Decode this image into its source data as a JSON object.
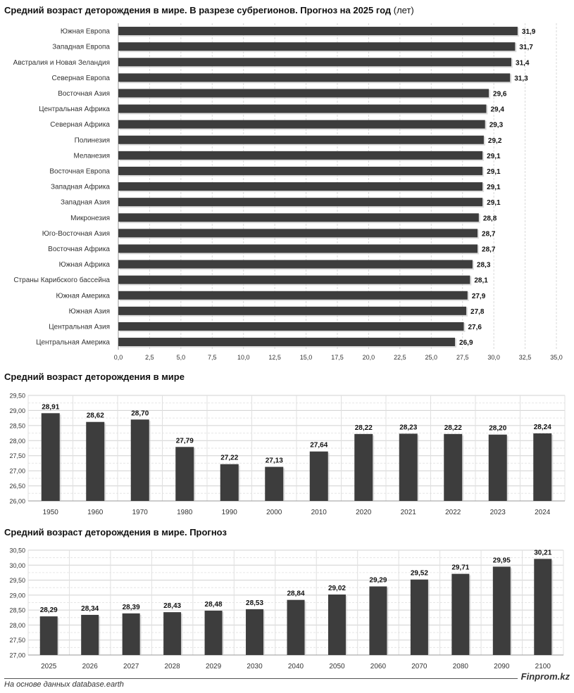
{
  "chart_data": [
    {
      "type": "bar",
      "orientation": "horizontal",
      "title": "Средний возраст деторождения в мире. В разрезе субрегионов. Прогноз на 2025 год",
      "title_unit": "(лет)",
      "categories": [
        "Южная Европа",
        "Западная Европа",
        "Австралия и Новая Зеландия",
        "Северная Европа",
        "Восточная Азия",
        "Центральная Африка",
        "Северная Африка",
        "Полинезия",
        "Меланезия",
        "Восточная Европа",
        "Западная Африка",
        "Западная Азия",
        "Микронезия",
        "Юго-Восточная Азия",
        "Восточная Африка",
        "Южная Африка",
        "Страны Карибского бассейна",
        "Южная Америка",
        "Южная Азия",
        "Центральная Азия",
        "Центральная Америка"
      ],
      "values": [
        31.9,
        31.7,
        31.4,
        31.3,
        29.6,
        29.4,
        29.3,
        29.2,
        29.1,
        29.1,
        29.1,
        29.1,
        28.8,
        28.7,
        28.7,
        28.3,
        28.1,
        27.9,
        27.8,
        27.6,
        26.9
      ],
      "value_labels": [
        "31,9",
        "31,7",
        "31,4",
        "31,3",
        "29,6",
        "29,4",
        "29,3",
        "29,2",
        "29,1",
        "29,1",
        "29,1",
        "29,1",
        "28,8",
        "28,7",
        "28,7",
        "28,3",
        "28,1",
        "27,9",
        "27,8",
        "27,6",
        "26,9"
      ],
      "xlim": [
        0,
        35
      ],
      "ticks": [
        "0,0",
        "2,5",
        "5,0",
        "7,5",
        "10,0",
        "12,5",
        "15,0",
        "17,5",
        "20,0",
        "22,5",
        "25,0",
        "27,5",
        "30,0",
        "32,5",
        "35,0"
      ],
      "grid": true,
      "bar_color": "#3d3d3d"
    },
    {
      "type": "bar",
      "orientation": "vertical",
      "title": "Средний возраст деторождения в мире",
      "categories": [
        "1950",
        "1960",
        "1970",
        "1980",
        "1990",
        "2000",
        "2010",
        "2020",
        "2021",
        "2022",
        "2023",
        "2024"
      ],
      "values": [
        28.91,
        28.62,
        28.7,
        27.79,
        27.22,
        27.13,
        27.64,
        28.22,
        28.23,
        28.22,
        28.2,
        28.24
      ],
      "value_labels": [
        "28,91",
        "28,62",
        "28,70",
        "27,79",
        "27,22",
        "27,13",
        "27,64",
        "28,22",
        "28,23",
        "28,22",
        "28,20",
        "28,24"
      ],
      "ylim": [
        26.0,
        29.5
      ],
      "ticks": [
        "26,00",
        "26,50",
        "27,00",
        "27,50",
        "28,00",
        "28,50",
        "29,00",
        "29,50"
      ],
      "grid": true,
      "bar_color": "#3d3d3d"
    },
    {
      "type": "bar",
      "orientation": "vertical",
      "title": "Средний возраст деторождения в мире. Прогноз",
      "categories": [
        "2025",
        "2026",
        "2027",
        "2028",
        "2029",
        "2030",
        "2040",
        "2050",
        "2060",
        "2070",
        "2080",
        "2090",
        "2100"
      ],
      "values": [
        28.29,
        28.34,
        28.39,
        28.43,
        28.48,
        28.53,
        28.84,
        29.02,
        29.29,
        29.52,
        29.71,
        29.95,
        30.21
      ],
      "value_labels": [
        "28,29",
        "28,34",
        "28,39",
        "28,43",
        "28,48",
        "28,53",
        "28,84",
        "29,02",
        "29,29",
        "29,52",
        "29,71",
        "29,95",
        "30,21"
      ],
      "ylim": [
        27.0,
        30.5
      ],
      "ticks": [
        "27,00",
        "27,50",
        "28,00",
        "28,50",
        "29,00",
        "29,50",
        "30,00",
        "30,50"
      ],
      "grid": true,
      "bar_color": "#3d3d3d"
    }
  ],
  "footer": {
    "source": "На основе данных database.earth",
    "brand": "Finprom.kz"
  }
}
